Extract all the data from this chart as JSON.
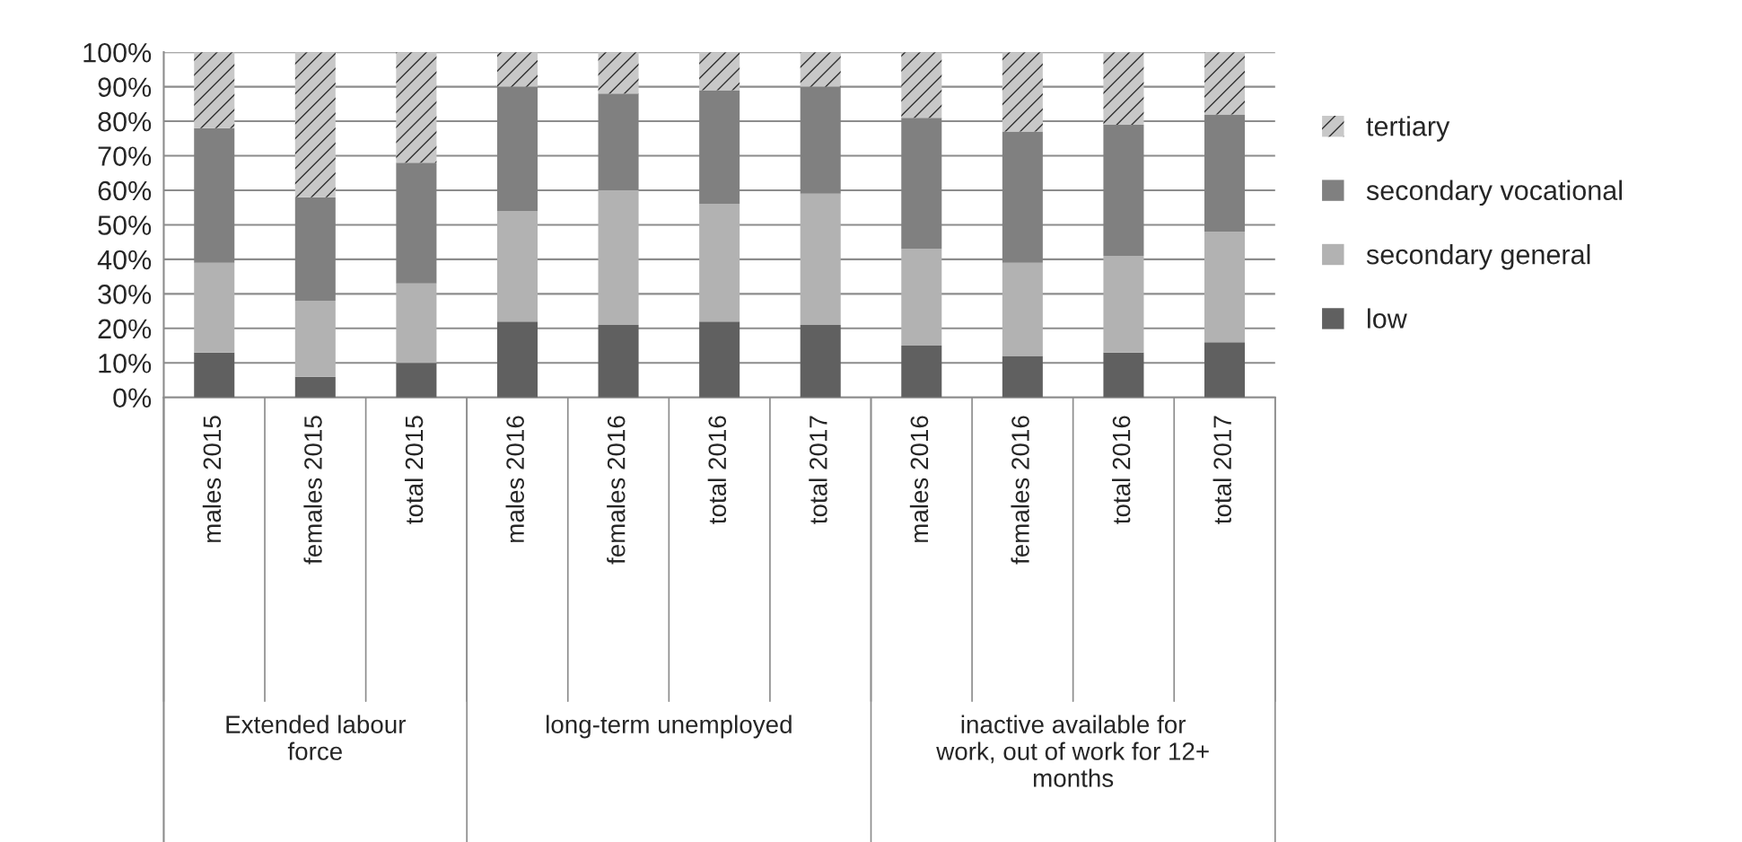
{
  "chart_data": {
    "type": "bar",
    "stacked": true,
    "categories": [
      "males 2015",
      "females 2015",
      "total 2015",
      "males 2016",
      "females 2016",
      "total 2016",
      "total 2017",
      "males 2016",
      "females 2016",
      "total 2016",
      "total 2017"
    ],
    "series": [
      {
        "name": "low",
        "color": "#606060",
        "values": [
          13,
          6,
          10,
          22,
          21,
          22,
          21,
          15,
          12,
          13,
          16
        ]
      },
      {
        "name": "secondary general",
        "color": "#b2b2b2",
        "values": [
          26,
          22,
          23,
          32,
          39,
          34,
          38,
          28,
          27,
          28,
          32
        ]
      },
      {
        "name": "secondary vocational",
        "color": "#808080",
        "values": [
          39,
          30,
          35,
          36,
          28,
          33,
          31,
          38,
          38,
          38,
          34
        ]
      },
      {
        "name": "tertiary",
        "color": "#c8c8c8",
        "values": [
          22,
          42,
          32,
          10,
          12,
          11,
          10,
          19,
          23,
          21,
          18
        ]
      }
    ],
    "annotations": [
      "Extended labour force",
      "long-term unemployed",
      "inactive available for work, out of work for 12+ months"
    ],
    "ylim": [
      0,
      100
    ],
    "yticks": [
      {
        "value": 0,
        "label": "0%"
      },
      {
        "value": 10,
        "label": "10%"
      },
      {
        "value": 20,
        "label": "20%"
      },
      {
        "value": 30,
        "label": "30%"
      },
      {
        "value": 40,
        "label": "40%"
      },
      {
        "value": 50,
        "label": "50%"
      },
      {
        "value": 60,
        "label": "60%"
      },
      {
        "value": 70,
        "label": "70%"
      },
      {
        "value": 80,
        "label": "80%"
      },
      {
        "value": 90,
        "label": "90%"
      },
      {
        "value": 100,
        "label": "100%"
      }
    ],
    "grid": "y",
    "legend": "right"
  }
}
